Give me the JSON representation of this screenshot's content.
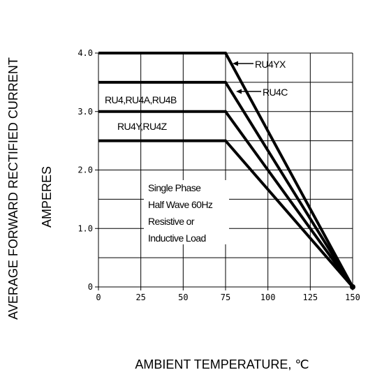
{
  "chart_data": {
    "type": "line",
    "xlabel": "AMBIENT TEMPERATURE, ℃",
    "ylabel_line1": "AVERAGE FORWARD RECTIFIED CURRENT",
    "ylabel_line2": "AMPERES",
    "xlim": [
      0,
      150
    ],
    "ylim": [
      0,
      4.0
    ],
    "x_ticks": [
      "0",
      "25",
      "50",
      "75",
      "100",
      "125",
      "150"
    ],
    "y_ticks": [
      "0",
      "1.0",
      "2.0",
      "3.0",
      "4.0"
    ],
    "grid": true,
    "series": [
      {
        "name": "RU4YX",
        "points": [
          [
            0,
            4.0
          ],
          [
            75,
            4.0
          ],
          [
            150,
            0
          ]
        ]
      },
      {
        "name": "RU4C",
        "points": [
          [
            0,
            3.5
          ],
          [
            75,
            3.5
          ],
          [
            150,
            0
          ]
        ]
      },
      {
        "name": "RU4,RU4A,RU4B",
        "points": [
          [
            0,
            3.0
          ],
          [
            75,
            3.0
          ],
          [
            150,
            0
          ]
        ]
      },
      {
        "name": "RU4Y,RU4Z",
        "points": [
          [
            0,
            2.5
          ],
          [
            75,
            2.5
          ],
          [
            150,
            0
          ]
        ]
      }
    ],
    "note_lines": [
      "Single Phase",
      "Half Wave 60Hz",
      "Resistive or",
      "Inductive Load"
    ]
  }
}
